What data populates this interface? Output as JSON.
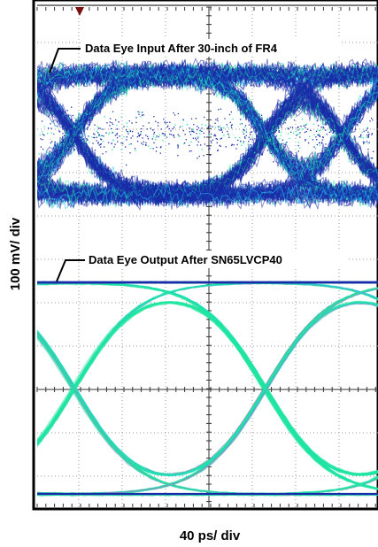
{
  "chart_data": {
    "type": "eye-diagram",
    "xlabel": "40 ps/ div",
    "ylabel": "100 mV/ div",
    "grid": true,
    "marker": "M1",
    "traces": [
      {
        "name": "Data Eye Input After 30-inch of FR4",
        "eye_height_div": 0.35,
        "rails_div": [
          -1.75,
          1.75
        ],
        "crossings_div": [
          -3.1,
          1.3
        ]
      },
      {
        "name": "Data Eye Output After SN65LVCP40",
        "eye_height_div": 3.7,
        "rails_div": [
          -2.0,
          2.0
        ],
        "crossings_div": [
          -3.1,
          1.3
        ]
      }
    ],
    "colors": {
      "dense": "#1a2ca8",
      "medium": "#20e8a0",
      "sparse": "#b36bd6",
      "cyan": "#20c8f0",
      "trigger": "#7a1010"
    }
  }
}
